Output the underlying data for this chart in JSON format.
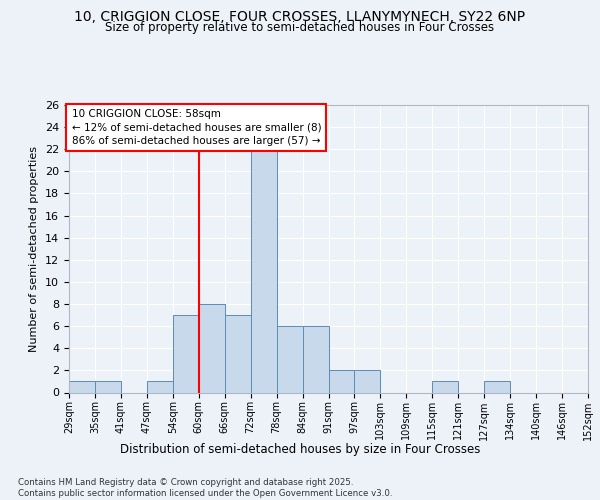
{
  "title_line1": "10, CRIGGION CLOSE, FOUR CROSSES, LLANYMYNECH, SY22 6NP",
  "title_line2": "Size of property relative to semi-detached houses in Four Crosses",
  "xlabel": "Distribution of semi-detached houses by size in Four Crosses",
  "ylabel": "Number of semi-detached properties",
  "bins": [
    "29sqm",
    "35sqm",
    "41sqm",
    "47sqm",
    "54sqm",
    "60sqm",
    "66sqm",
    "72sqm",
    "78sqm",
    "84sqm",
    "91sqm",
    "97sqm",
    "103sqm",
    "109sqm",
    "115sqm",
    "121sqm",
    "127sqm",
    "134sqm",
    "140sqm",
    "146sqm",
    "152sqm"
  ],
  "bar_values": [
    1,
    1,
    0,
    1,
    7,
    8,
    7,
    22,
    6,
    6,
    2,
    2,
    0,
    0,
    1,
    0,
    1,
    0,
    0,
    0
  ],
  "bar_color": "#c9d9ec",
  "bar_edge_color": "#5b8db8",
  "red_line_x": 4.5,
  "annotation_text": "10 CRIGGION CLOSE: 58sqm\n← 12% of semi-detached houses are smaller (8)\n86% of semi-detached houses are larger (57) →",
  "ylim": [
    0,
    26
  ],
  "yticks": [
    0,
    2,
    4,
    6,
    8,
    10,
    12,
    14,
    16,
    18,
    20,
    22,
    24,
    26
  ],
  "bg_color": "#edf2f9",
  "grid_color": "#ffffff",
  "footer": "Contains HM Land Registry data © Crown copyright and database right 2025.\nContains public sector information licensed under the Open Government Licence v3.0."
}
